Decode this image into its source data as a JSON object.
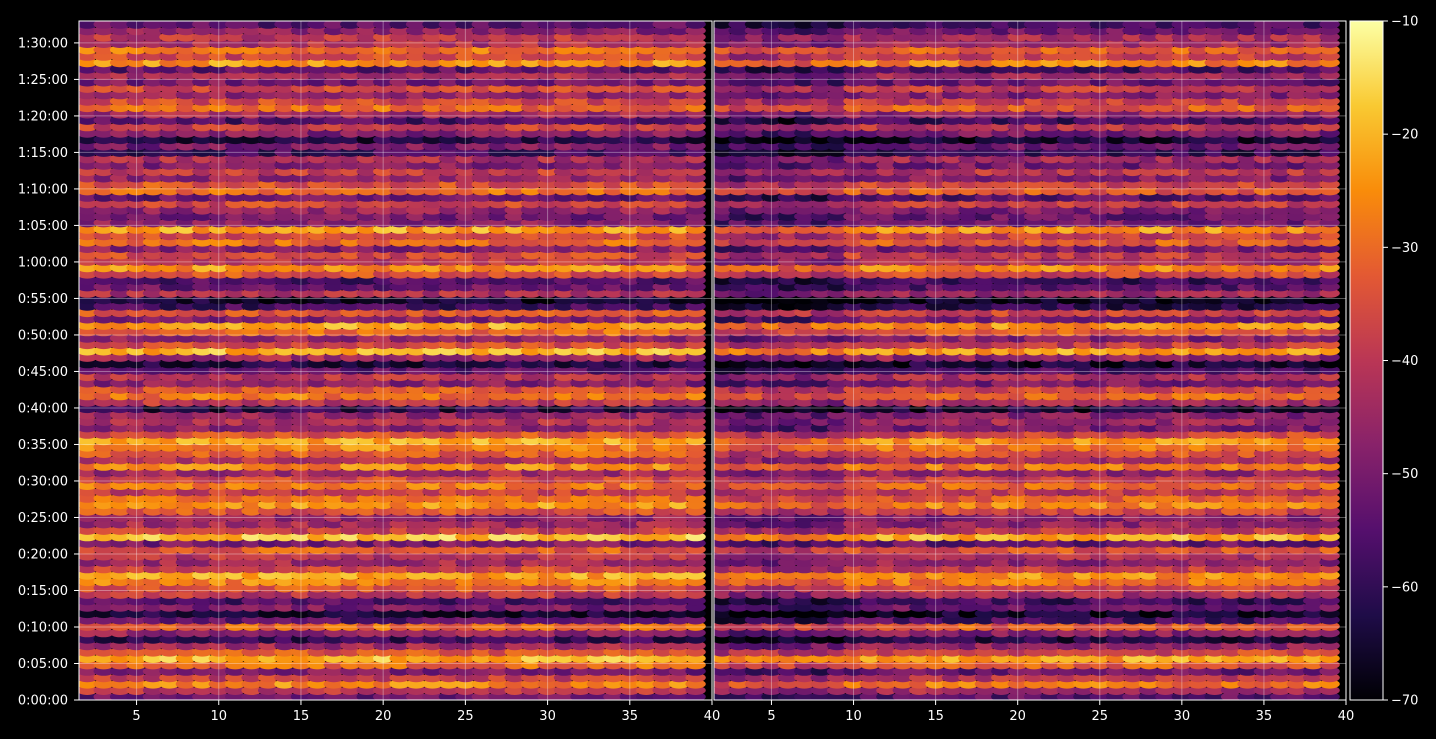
{
  "chart_data": {
    "type": "heatmap",
    "title": "",
    "colormap": "inferno",
    "background": "#000000",
    "grid": true,
    "panels": [
      {
        "name": "left",
        "xlabel": "",
        "ylabel": "",
        "xlim": [
          1.5,
          40
        ],
        "xticks": [
          5,
          10,
          15,
          20,
          25,
          30,
          35,
          40
        ],
        "ylim_seconds": [
          0,
          5580
        ],
        "yticks": [
          "0:00:00",
          "0:05:00",
          "0:10:00",
          "0:15:00",
          "0:20:00",
          "0:25:00",
          "0:30:00",
          "0:35:00",
          "0:40:00",
          "0:45:00",
          "0:50:00",
          "0:55:00",
          "1:00:00",
          "1:05:00",
          "1:10:00",
          "1:15:00",
          "1:20:00",
          "1:25:00",
          "1:30:00"
        ]
      },
      {
        "name": "right",
        "xlabel": "",
        "ylabel": "",
        "xlim": [
          1.5,
          40
        ],
        "xticks": [
          5,
          10,
          15,
          20,
          25,
          30,
          35,
          40
        ],
        "ylim_seconds": [
          0,
          5580
        ]
      }
    ],
    "columns": {
      "start": 2,
      "end": 39,
      "step": 1
    },
    "row_levels_db": [
      -52,
      -40,
      -26,
      -38,
      -50,
      -30,
      -20,
      -34,
      -44,
      -60,
      -46,
      -30,
      -54,
      -64,
      -50,
      -56,
      -40,
      -34,
      -26,
      -22,
      -36,
      -44,
      -40,
      -32,
      -50,
      -18,
      -38,
      -44,
      -46,
      -34,
      -24,
      -30,
      -38,
      -28,
      -36,
      -44,
      -26,
      -40,
      -32,
      -26,
      -22,
      -34,
      -48,
      -42,
      -46,
      -62,
      -40,
      -28,
      -34,
      -48,
      -40,
      -54,
      -62,
      -44,
      -20,
      -36,
      -46,
      -30,
      -22,
      -48,
      -34,
      -58,
      -66,
      -42,
      -52,
      -56,
      -34,
      -24,
      -40,
      -36,
      -48,
      -30,
      -36,
      -22,
      -48,
      -50,
      -46,
      -36,
      -52,
      -30,
      -34,
      -46,
      -38,
      -48,
      -42,
      -58,
      -50,
      -62,
      -48,
      -38,
      -56,
      -44,
      -30,
      -36,
      -46,
      -36,
      -50,
      -42,
      -54,
      -24,
      -36,
      -28,
      -42,
      -40,
      -48,
      -54
    ],
    "colorbar": {
      "ticks": [
        "−10",
        "−20",
        "−30",
        "−40",
        "−50",
        "−60",
        "−70"
      ],
      "range": [
        -70,
        -10
      ]
    }
  }
}
